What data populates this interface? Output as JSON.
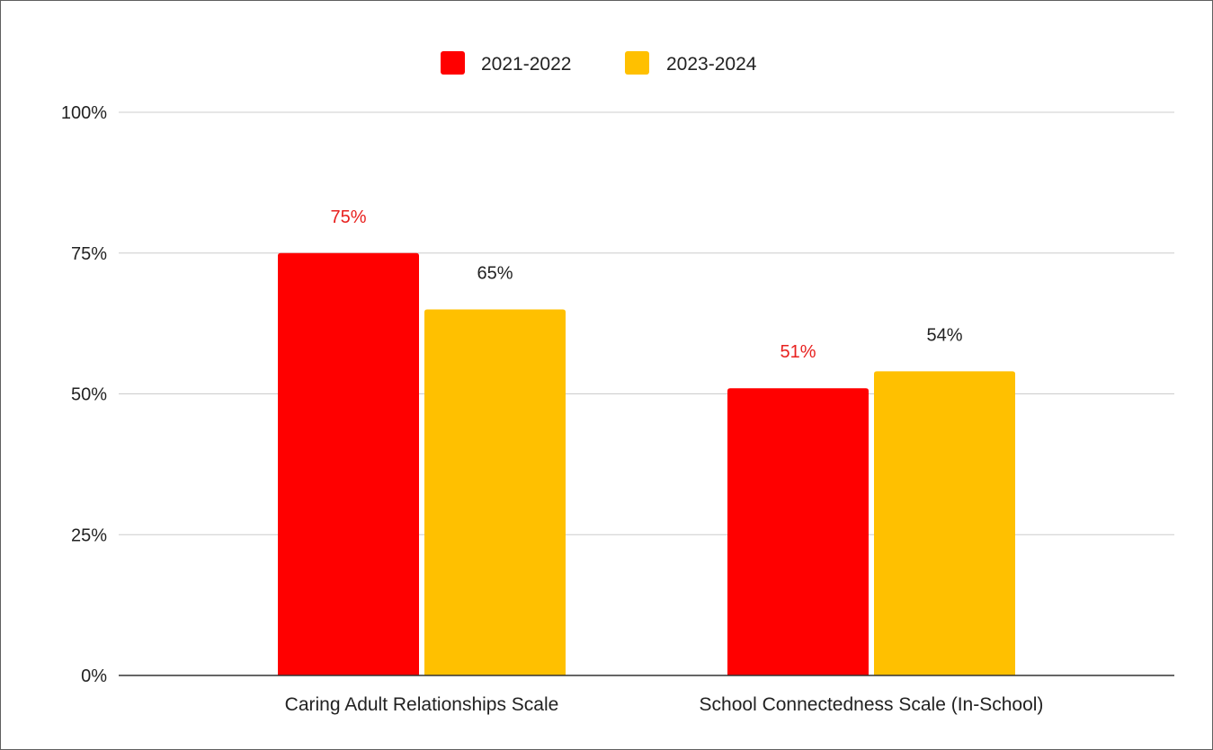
{
  "chart_data": {
    "type": "bar",
    "title": "",
    "xlabel": "",
    "ylabel": "",
    "categories": [
      "Caring Adult Relationships Scale",
      "School Connectedness Scale (In-School)"
    ],
    "series": [
      {
        "name": "2021-2022",
        "color": "#ff0000",
        "label_color": "#e8201e",
        "values": [
          75,
          51
        ],
        "labels": [
          "75%",
          "51%"
        ]
      },
      {
        "name": "2023-2024",
        "color": "#ffc000",
        "label_color": "#222222",
        "values": [
          65,
          54
        ],
        "labels": [
          "65%",
          "54%"
        ]
      }
    ],
    "ylim": [
      0,
      100
    ],
    "yticks": [
      0,
      25,
      50,
      75,
      100
    ],
    "ytick_labels": [
      "0%",
      "25%",
      "50%",
      "75%",
      "100%"
    ],
    "grid": true,
    "legend_position": "top-center"
  }
}
